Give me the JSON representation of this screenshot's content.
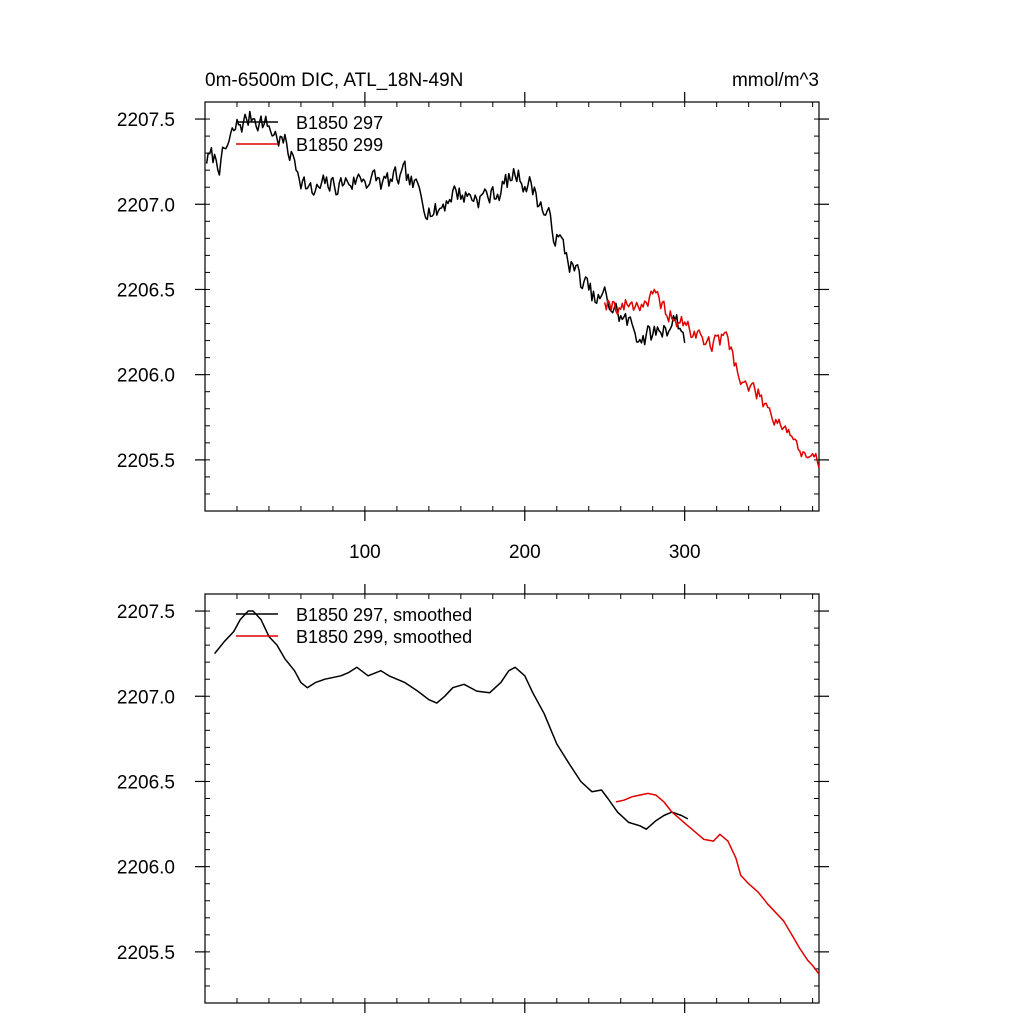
{
  "figure": {
    "title": "0m-6500m DIC, ATL_18N-49N",
    "units": "mmol/m^3"
  },
  "colors": {
    "run_a": "#000000",
    "run_b": "#e00000",
    "axis": "#000000"
  },
  "chart_data": [
    {
      "type": "line",
      "panel": "raw",
      "title": "0m-6500m DIC, ATL_18N-49N",
      "units_label": "mmol/m^3",
      "xlabel": "",
      "ylabel": "",
      "xlim": [
        0,
        384
      ],
      "ylim": [
        2205.2,
        2207.6
      ],
      "x_major_ticks": [
        100,
        200,
        300
      ],
      "x_tick_labels": [
        "100",
        "200",
        "300"
      ],
      "x_minor_step": 20,
      "y_major_ticks": [
        2205.5,
        2206.0,
        2206.5,
        2207.0,
        2207.5
      ],
      "y_tick_labels": [
        "2205.5",
        "2206.0",
        "2206.5",
        "2207.0",
        "2207.5"
      ],
      "y_minor_step": 0.1,
      "legend": {
        "placement": "top-left",
        "entries": [
          "B1850 297",
          "B1850 299"
        ]
      },
      "series": [
        {
          "name": "B1850 297",
          "color": "#000000",
          "noise": 0.06,
          "seed": 7,
          "x": [
            1,
            10,
            20,
            30,
            35,
            40,
            50,
            60,
            67,
            75,
            85,
            100,
            112,
            125,
            135,
            145,
            155,
            165,
            180,
            195,
            205,
            215,
            225,
            235,
            245,
            250,
            260,
            270,
            278,
            287,
            295,
            300
          ],
          "values": [
            2207.27,
            2207.25,
            2207.45,
            2207.52,
            2207.5,
            2207.45,
            2207.35,
            2207.18,
            2207.05,
            2207.1,
            2207.12,
            2207.16,
            2207.12,
            2207.15,
            2207.05,
            2206.95,
            2207.08,
            2207.05,
            2207.05,
            2207.18,
            2207.1,
            2206.9,
            2206.72,
            2206.55,
            2206.42,
            2206.45,
            2206.34,
            2206.25,
            2206.22,
            2206.28,
            2206.33,
            2206.22
          ]
        },
        {
          "name": "B1850 299",
          "color": "#e00000",
          "noise": 0.05,
          "seed": 19,
          "x": [
            250,
            260,
            270,
            280,
            285,
            290,
            300,
            310,
            318,
            325,
            330,
            335,
            345,
            355,
            365,
            372,
            378,
            384
          ],
          "values": [
            2206.45,
            2206.4,
            2206.42,
            2206.45,
            2206.4,
            2206.36,
            2206.28,
            2206.22,
            2206.18,
            2206.22,
            2206.15,
            2205.95,
            2205.9,
            2205.78,
            2205.68,
            2205.55,
            2205.47,
            2205.47
          ]
        }
      ]
    },
    {
      "type": "line",
      "panel": "smoothed",
      "xlabel": "",
      "ylabel": "",
      "xlim": [
        0,
        384
      ],
      "ylim": [
        2205.2,
        2207.6
      ],
      "x_major_ticks": [
        100,
        200,
        300
      ],
      "x_minor_step": 20,
      "y_major_ticks": [
        2205.5,
        2206.0,
        2206.5,
        2207.0,
        2207.5
      ],
      "y_tick_labels": [
        "2205.5",
        "2206.0",
        "2206.5",
        "2207.0",
        "2207.5"
      ],
      "y_minor_step": 0.1,
      "legend": {
        "placement": "top-left",
        "entries": [
          "B1850 297, smoothed",
          "B1850 299, smoothed"
        ]
      },
      "series": [
        {
          "name": "B1850 297, smoothed",
          "color": "#000000",
          "x": [
            6,
            12,
            18,
            22,
            27,
            30,
            35,
            40,
            45,
            50,
            56,
            60,
            64,
            69,
            75,
            85,
            90,
            95,
            102,
            110,
            115,
            125,
            133,
            140,
            145,
            150,
            155,
            162,
            170,
            178,
            185,
            190,
            194,
            200,
            205,
            212,
            220,
            228,
            235,
            242,
            248,
            252,
            258,
            265,
            272,
            276,
            282,
            287,
            292,
            298,
            302
          ],
          "values": [
            2207.25,
            2207.32,
            2207.38,
            2207.45,
            2207.5,
            2207.5,
            2207.45,
            2207.35,
            2207.3,
            2207.22,
            2207.15,
            2207.08,
            2207.05,
            2207.08,
            2207.1,
            2207.12,
            2207.14,
            2207.17,
            2207.12,
            2207.15,
            2207.12,
            2207.08,
            2207.03,
            2206.98,
            2206.96,
            2207.0,
            2207.05,
            2207.07,
            2207.03,
            2207.02,
            2207.08,
            2207.15,
            2207.17,
            2207.12,
            2207.02,
            2206.9,
            2206.72,
            2206.6,
            2206.5,
            2206.44,
            2206.45,
            2206.4,
            2206.32,
            2206.26,
            2206.24,
            2206.22,
            2206.27,
            2206.3,
            2206.32,
            2206.3,
            2206.28
          ]
        },
        {
          "name": "B1850 299, smoothed",
          "color": "#e00000",
          "x": [
            257,
            262,
            267,
            272,
            277,
            282,
            287,
            292,
            297,
            302,
            307,
            312,
            318,
            322,
            327,
            332,
            335,
            340,
            346,
            352,
            357,
            362,
            367,
            372,
            377,
            380,
            384
          ],
          "values": [
            2206.38,
            2206.39,
            2206.41,
            2206.42,
            2206.43,
            2206.42,
            2206.38,
            2206.32,
            2206.28,
            2206.24,
            2206.2,
            2206.16,
            2206.15,
            2206.19,
            2206.15,
            2206.05,
            2205.95,
            2205.9,
            2205.85,
            2205.78,
            2205.73,
            2205.68,
            2205.6,
            2205.52,
            2205.45,
            2205.42,
            2205.37
          ]
        }
      ]
    }
  ]
}
